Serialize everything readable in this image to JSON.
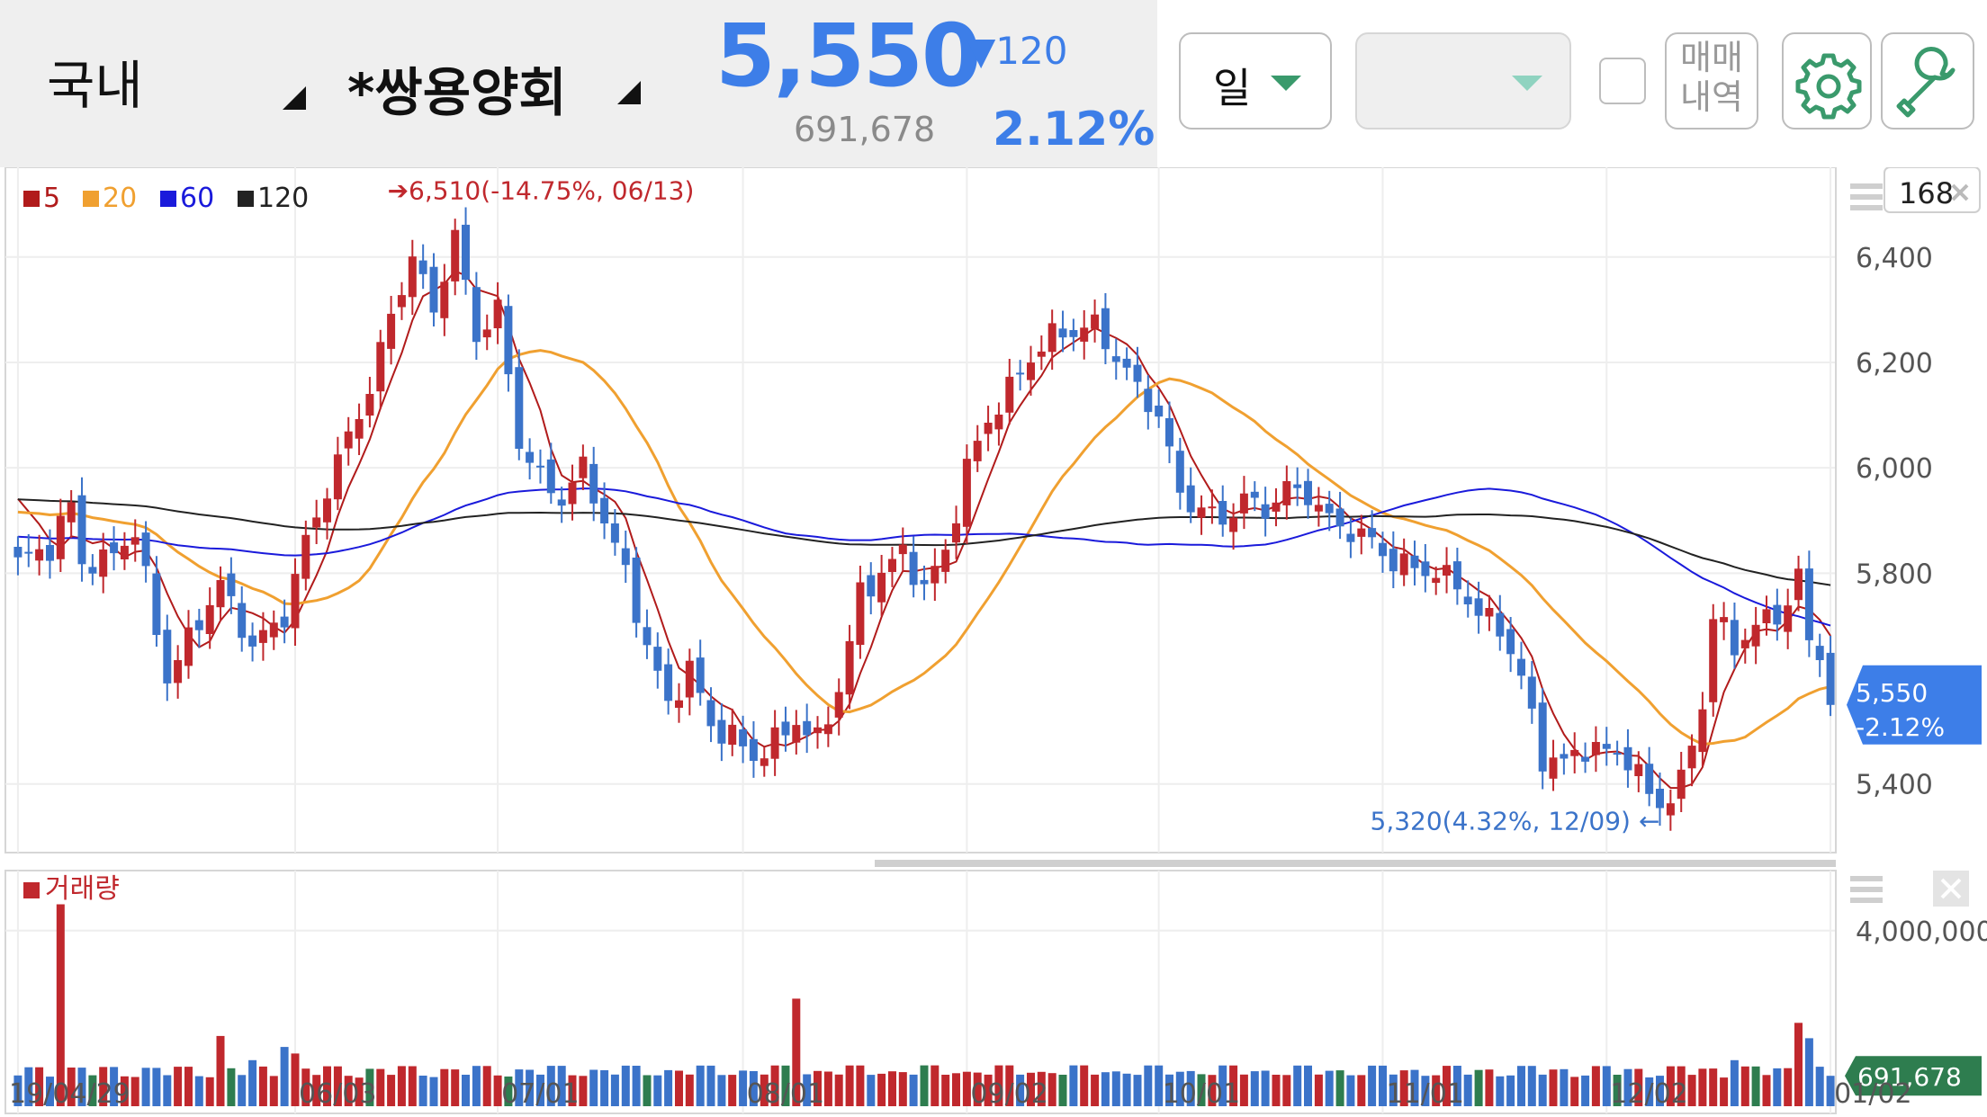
{
  "header": {
    "market": "국내",
    "stock_name": "*쌍용양회",
    "price": "5,550",
    "change": "▼120",
    "volume": "691,678",
    "change_pct": "2.12%",
    "period_label": "일",
    "trade_history_line1": "매매",
    "trade_history_line2": "내역",
    "count_value": "168"
  },
  "chart_data": {
    "type": "candlestick",
    "legend": [
      {
        "label": "5",
        "color": "#b11b1b"
      },
      {
        "label": "20",
        "color": "#f0a030"
      },
      {
        "label": "60",
        "color": "#1a1adb"
      },
      {
        "label": "120",
        "color": "#222222"
      }
    ],
    "price_ylim": [
      5280,
      6560
    ],
    "price_ticks": [
      "6,400",
      "6,200",
      "6,000",
      "5,800",
      "5,400"
    ],
    "price_tick_values": [
      6400,
      6200,
      6000,
      5800,
      5400
    ],
    "x_tick_labels": [
      "19/04/29",
      "06/03",
      "07/01",
      "08/01",
      "09/02",
      "10/01",
      "11/01",
      "12/02",
      "01/02"
    ],
    "x_tick_index": [
      0,
      26,
      45,
      68,
      89,
      107,
      128,
      149,
      170
    ],
    "current_price_label": "5,550",
    "current_change_label": "-2.12%",
    "current_price": 5550,
    "high_annotation": {
      "text": "6,510(-14.75%, 06/13)",
      "value": 6510,
      "index": 35
    },
    "low_annotation": {
      "text": "5,320(4.32%, 12/09)",
      "value": 5320,
      "index": 154
    },
    "close_anchors": [
      [
        0,
        5820
      ],
      [
        3,
        5850
      ],
      [
        5,
        5930
      ],
      [
        6,
        5820
      ],
      [
        8,
        5820
      ],
      [
        11,
        5880
      ],
      [
        14,
        5600
      ],
      [
        17,
        5710
      ],
      [
        19,
        5780
      ],
      [
        22,
        5660
      ],
      [
        25,
        5720
      ],
      [
        27,
        5860
      ],
      [
        29,
        5960
      ],
      [
        31,
        6060
      ],
      [
        33,
        6150
      ],
      [
        35,
        6290
      ],
      [
        37,
        6400
      ],
      [
        39,
        6300
      ],
      [
        41,
        6440
      ],
      [
        43,
        6250
      ],
      [
        45,
        6300
      ],
      [
        47,
        6050
      ],
      [
        49,
        5980
      ],
      [
        51,
        5940
      ],
      [
        53,
        6000
      ],
      [
        55,
        5900
      ],
      [
        57,
        5800
      ],
      [
        59,
        5660
      ],
      [
        61,
        5550
      ],
      [
        63,
        5620
      ],
      [
        65,
        5510
      ],
      [
        67,
        5490
      ],
      [
        69,
        5450
      ],
      [
        71,
        5480
      ],
      [
        73,
        5520
      ],
      [
        75,
        5480
      ],
      [
        77,
        5580
      ],
      [
        79,
        5760
      ],
      [
        81,
        5800
      ],
      [
        83,
        5840
      ],
      [
        85,
        5770
      ],
      [
        87,
        5840
      ],
      [
        89,
        6000
      ],
      [
        91,
        6090
      ],
      [
        93,
        6150
      ],
      [
        95,
        6210
      ],
      [
        97,
        6250
      ],
      [
        99,
        6260
      ],
      [
        101,
        6270
      ],
      [
        103,
        6210
      ],
      [
        105,
        6150
      ],
      [
        107,
        6100
      ],
      [
        109,
        5950
      ],
      [
        111,
        5920
      ],
      [
        113,
        5900
      ],
      [
        115,
        5940
      ],
      [
        117,
        5920
      ],
      [
        119,
        5960
      ],
      [
        121,
        5950
      ],
      [
        123,
        5900
      ],
      [
        125,
        5880
      ],
      [
        127,
        5860
      ],
      [
        129,
        5820
      ],
      [
        131,
        5810
      ],
      [
        133,
        5800
      ],
      [
        135,
        5780
      ],
      [
        137,
        5720
      ],
      [
        139,
        5700
      ],
      [
        141,
        5600
      ],
      [
        143,
        5450
      ],
      [
        145,
        5440
      ],
      [
        147,
        5470
      ],
      [
        149,
        5460
      ],
      [
        151,
        5450
      ],
      [
        153,
        5380
      ],
      [
        154,
        5360
      ],
      [
        156,
        5400
      ],
      [
        157,
        5480
      ],
      [
        158,
        5550
      ],
      [
        159,
        5720
      ],
      [
        161,
        5660
      ],
      [
        163,
        5700
      ],
      [
        164,
        5710
      ],
      [
        166,
        5740
      ],
      [
        167,
        5800
      ],
      [
        168,
        5660
      ],
      [
        169,
        5660
      ],
      [
        170,
        5550
      ]
    ],
    "ma_labels_shown": true,
    "volume_legend": "거래량",
    "volume_ylim": [
      0,
      5000000
    ],
    "volume_tick_label": "4,000,000",
    "volume_tick_value": 4000000,
    "volume_current_label": "691,678",
    "volume_current": 691678,
    "volume_spikes": [
      {
        "index": 4,
        "value": 4600000
      },
      {
        "index": 19,
        "value": 1600000
      },
      {
        "index": 22,
        "value": 1050000
      },
      {
        "index": 25,
        "value": 1350000
      },
      {
        "index": 26,
        "value": 1200000
      },
      {
        "index": 73,
        "value": 2450000
      },
      {
        "index": 161,
        "value": 1050000
      },
      {
        "index": 167,
        "value": 1900000
      },
      {
        "index": 168,
        "value": 1550000
      }
    ],
    "candle_colors": {
      "up": "#c0282d",
      "down": "#3b73c9"
    },
    "volume_colors": {
      "up": "#c0282d",
      "down": "#3b73c9",
      "flat": "#2e7d4f"
    },
    "grid": true
  }
}
